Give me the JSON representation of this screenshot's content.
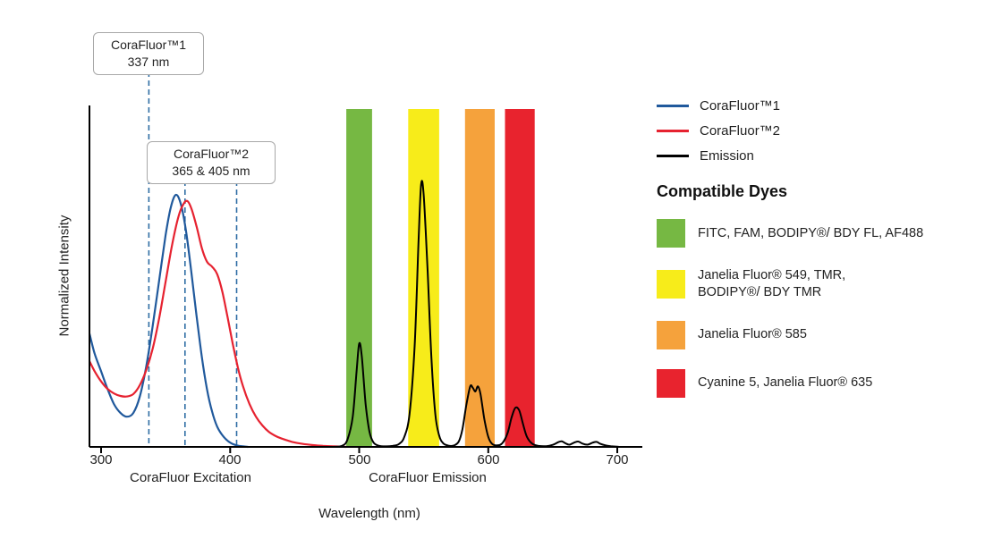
{
  "chart_data": {
    "type": "line",
    "xlabel": "Wavelength (nm)",
    "ylabel": "Normalized Intensity",
    "x_ticks": [
      300,
      400,
      500,
      600,
      700
    ],
    "x_range_nm": [
      291,
      720
    ],
    "ylim": [
      0,
      1.35
    ],
    "grid": false,
    "legend_position": "right",
    "axis_section_labels": [
      {
        "text": "CoraFluor Excitation"
      },
      {
        "text": "CoraFluor Emission"
      }
    ],
    "annotations": [
      {
        "text_lines": [
          "CoraFluor™1",
          "337 nm"
        ],
        "marker_nm": [
          337
        ],
        "line_color": "#2e6da4"
      },
      {
        "text_lines": [
          "CoraFluor™2",
          "365 & 405 nm"
        ],
        "marker_nm": [
          365,
          405
        ],
        "line_color": "#2e6da4"
      }
    ],
    "bands": [
      {
        "name": "FITC, FAM, BODIPY®/ BDY FL, AF488",
        "color": "#76b843",
        "from": 490,
        "to": 510
      },
      {
        "name": "Janelia Fluor® 549, TMR,\nBODIPY®/ BDY TMR",
        "color": "#f7ec1a",
        "from": 538,
        "to": 562
      },
      {
        "name": "Janelia Fluor® 585",
        "color": "#f5a23c",
        "from": 582,
        "to": 605
      },
      {
        "name": "Cyanine 5, Janelia Fluor® 635",
        "color": "#e8232e",
        "from": 613,
        "to": 636
      }
    ],
    "series": [
      {
        "name": "CoraFluor™1",
        "color": "#20599c",
        "points": [
          [
            291,
            0.45
          ],
          [
            295,
            0.37
          ],
          [
            300,
            0.3
          ],
          [
            305,
            0.23
          ],
          [
            310,
            0.17
          ],
          [
            315,
            0.135
          ],
          [
            320,
            0.12
          ],
          [
            325,
            0.135
          ],
          [
            330,
            0.2
          ],
          [
            335,
            0.32
          ],
          [
            340,
            0.48
          ],
          [
            345,
            0.66
          ],
          [
            350,
            0.84
          ],
          [
            354,
            0.95
          ],
          [
            358,
            1.0
          ],
          [
            362,
            0.96
          ],
          [
            366,
            0.85
          ],
          [
            370,
            0.69
          ],
          [
            374,
            0.52
          ],
          [
            378,
            0.36
          ],
          [
            382,
            0.23
          ],
          [
            386,
            0.14
          ],
          [
            390,
            0.08
          ],
          [
            395,
            0.04
          ],
          [
            400,
            0.017
          ],
          [
            405,
            0.006
          ],
          [
            410,
            0.002
          ],
          [
            414,
            0.0
          ]
        ]
      },
      {
        "name": "CoraFluor™2",
        "color": "#e62230",
        "points": [
          [
            291,
            0.34
          ],
          [
            295,
            0.3
          ],
          [
            300,
            0.26
          ],
          [
            305,
            0.23
          ],
          [
            310,
            0.212
          ],
          [
            315,
            0.202
          ],
          [
            320,
            0.2
          ],
          [
            325,
            0.21
          ],
          [
            330,
            0.245
          ],
          [
            335,
            0.305
          ],
          [
            340,
            0.39
          ],
          [
            345,
            0.51
          ],
          [
            350,
            0.655
          ],
          [
            355,
            0.8
          ],
          [
            360,
            0.915
          ],
          [
            364,
            0.965
          ],
          [
            367,
            0.975
          ],
          [
            370,
            0.945
          ],
          [
            374,
            0.875
          ],
          [
            378,
            0.79
          ],
          [
            382,
            0.735
          ],
          [
            386,
            0.715
          ],
          [
            390,
            0.685
          ],
          [
            394,
            0.615
          ],
          [
            398,
            0.515
          ],
          [
            402,
            0.41
          ],
          [
            406,
            0.315
          ],
          [
            410,
            0.24
          ],
          [
            415,
            0.17
          ],
          [
            420,
            0.12
          ],
          [
            425,
            0.085
          ],
          [
            430,
            0.06
          ],
          [
            435,
            0.044
          ],
          [
            440,
            0.033
          ],
          [
            448,
            0.02
          ],
          [
            456,
            0.012
          ],
          [
            464,
            0.007
          ],
          [
            472,
            0.004
          ],
          [
            480,
            0.002
          ],
          [
            490,
            0.0
          ]
        ]
      },
      {
        "name": "Emission",
        "color": "#000000",
        "points": [
          [
            480,
            0.0
          ],
          [
            487,
            0.005
          ],
          [
            491,
            0.03
          ],
          [
            495,
            0.12
          ],
          [
            498,
            0.3
          ],
          [
            500,
            0.41
          ],
          [
            502,
            0.36
          ],
          [
            505,
            0.17
          ],
          [
            508,
            0.06
          ],
          [
            511,
            0.018
          ],
          [
            515,
            0.005
          ],
          [
            520,
            0.002
          ],
          [
            526,
            0.004
          ],
          [
            531,
            0.012
          ],
          [
            535,
            0.04
          ],
          [
            539,
            0.13
          ],
          [
            543,
            0.4
          ],
          [
            546,
            0.82
          ],
          [
            548,
            1.04
          ],
          [
            550,
            1.0
          ],
          [
            553,
            0.7
          ],
          [
            556,
            0.35
          ],
          [
            559,
            0.13
          ],
          [
            562,
            0.045
          ],
          [
            565,
            0.015
          ],
          [
            569,
            0.005
          ],
          [
            573,
            0.005
          ],
          [
            577,
            0.02
          ],
          [
            580,
            0.07
          ],
          [
            583,
            0.165
          ],
          [
            586,
            0.24
          ],
          [
            588,
            0.235
          ],
          [
            590,
            0.22
          ],
          [
            592,
            0.24
          ],
          [
            594,
            0.21
          ],
          [
            597,
            0.11
          ],
          [
            600,
            0.04
          ],
          [
            603,
            0.012
          ],
          [
            607,
            0.006
          ],
          [
            611,
            0.015
          ],
          [
            615,
            0.055
          ],
          [
            618,
            0.115
          ],
          [
            621,
            0.155
          ],
          [
            624,
            0.145
          ],
          [
            627,
            0.09
          ],
          [
            630,
            0.04
          ],
          [
            634,
            0.013
          ],
          [
            639,
            0.004
          ],
          [
            645,
            0.003
          ],
          [
            650,
            0.008
          ],
          [
            654,
            0.018
          ],
          [
            657,
            0.022
          ],
          [
            660,
            0.014
          ],
          [
            663,
            0.009
          ],
          [
            667,
            0.018
          ],
          [
            670,
            0.021
          ],
          [
            673,
            0.013
          ],
          [
            677,
            0.009
          ],
          [
            681,
            0.017
          ],
          [
            684,
            0.02
          ],
          [
            687,
            0.012
          ],
          [
            691,
            0.006
          ],
          [
            695,
            0.003
          ],
          [
            700,
            0.001
          ],
          [
            702,
            0.0
          ]
        ]
      }
    ]
  },
  "legend": {
    "heading": "Compatible Dyes"
  }
}
